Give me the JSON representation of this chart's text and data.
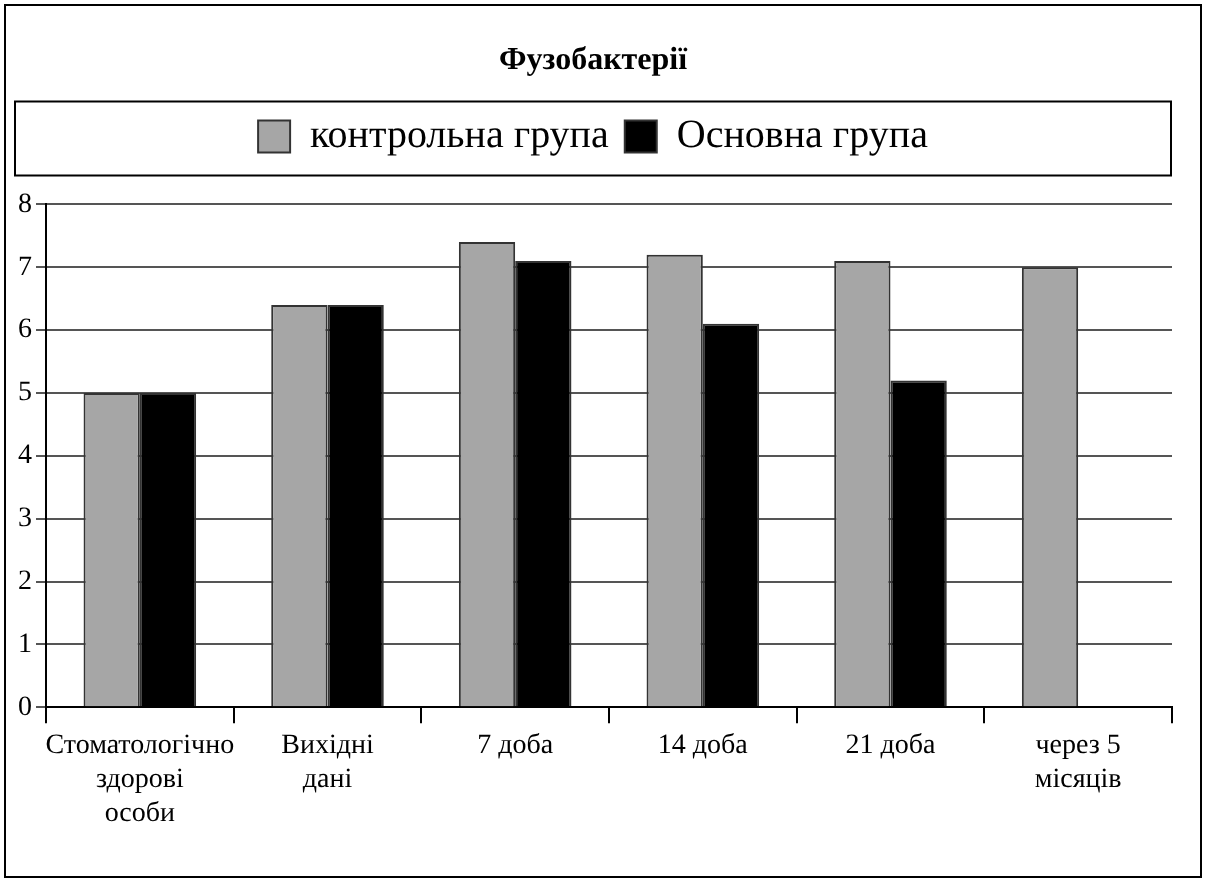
{
  "chart_data": {
    "type": "bar",
    "title": "Фузобактерії",
    "categories": [
      "Стоматологічно здорові особи",
      "Вихідні дані",
      "7 доба",
      "14 доба",
      "21 доба",
      "через 5 місяців"
    ],
    "series": [
      {
        "name": "контрольна група",
        "color": "#a6a6a6",
        "values": [
          5,
          6.4,
          7.4,
          7.2,
          7.1,
          7.0
        ]
      },
      {
        "name": "Основна група",
        "color": "#000000",
        "values": [
          5,
          6.4,
          7.1,
          6.1,
          5.2,
          null
        ]
      }
    ],
    "ylim": [
      0,
      8
    ],
    "yticks": [
      0,
      1,
      2,
      3,
      4,
      5,
      6,
      7,
      8
    ],
    "grid": "y",
    "legend": "top"
  }
}
